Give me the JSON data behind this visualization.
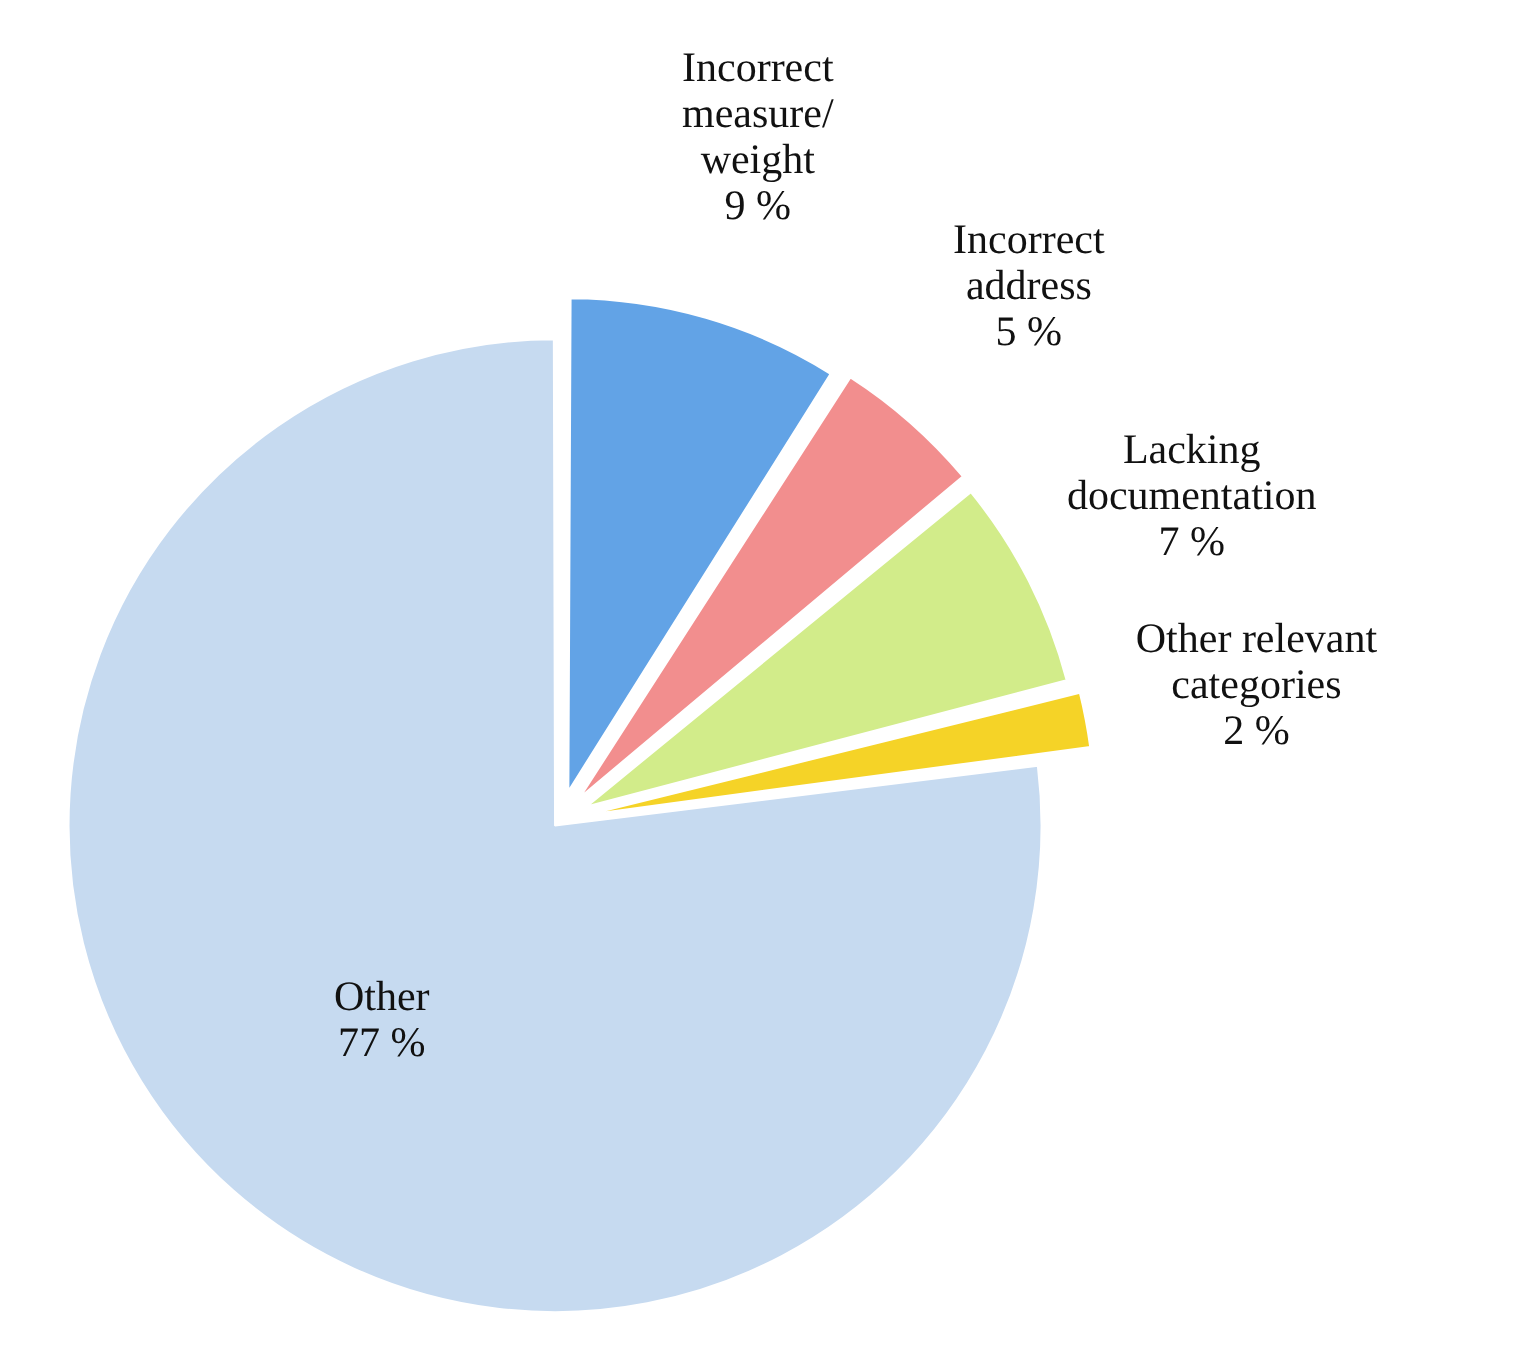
{
  "chart_data": {
    "type": "pie",
    "categories": [
      "Incorrect measure/weight",
      "Incorrect address",
      "Lacking documentation",
      "Other relevant categories",
      "Other"
    ],
    "values": [
      9,
      5,
      7,
      2,
      77
    ],
    "value_labels": [
      "9 %",
      "5 %",
      "7 %",
      "2 %",
      "77 %"
    ],
    "colors": [
      "#62a3e6",
      "#f28e8e",
      "#d2ec8a",
      "#f5d327",
      "#c6daf0"
    ],
    "legend": false
  }
}
